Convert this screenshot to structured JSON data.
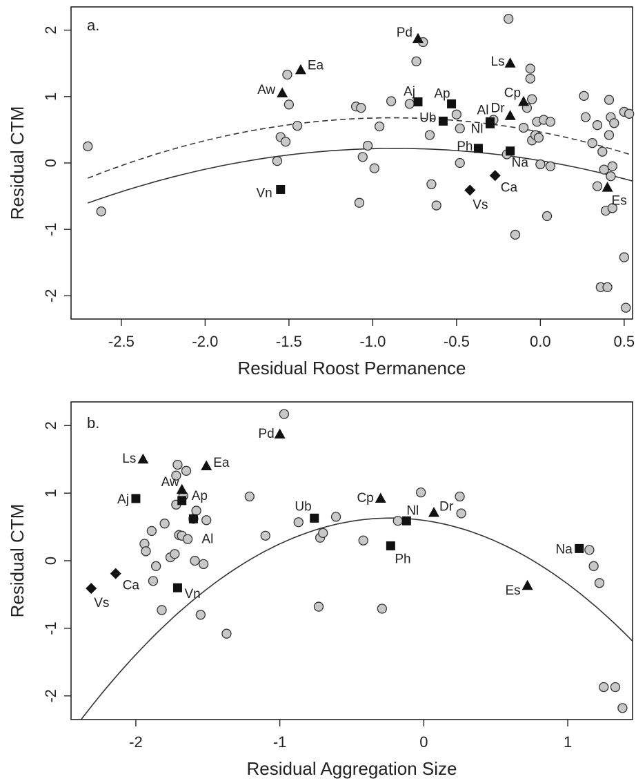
{
  "chart_data": [
    {
      "type": "scatter",
      "panel_label": "a.",
      "xlabel": "Residual Roost Permanence",
      "ylabel": "Residual CTM",
      "xlim": [
        -2.8,
        0.55
      ],
      "ylim": [
        -2.35,
        2.35
      ],
      "xticks": [
        -2.5,
        -2.0,
        -1.5,
        -1.0,
        -0.5,
        0.0,
        0.5
      ],
      "xtick_labels": [
        "-2.5",
        "-2.0",
        "-1.5",
        "-1.0",
        "-0.5",
        "0.0",
        "0.5"
      ],
      "yticks": [
        -2,
        -1,
        0,
        1,
        2
      ],
      "ytick_labels": [
        "-2",
        "-1",
        "0",
        "1",
        "2"
      ],
      "circles": [
        [
          -2.7,
          0.25
        ],
        [
          -2.62,
          -0.73
        ],
        [
          -1.57,
          0.03
        ],
        [
          -1.55,
          0.39
        ],
        [
          -1.52,
          0.32
        ],
        [
          -1.51,
          1.33
        ],
        [
          -1.5,
          0.88
        ],
        [
          -1.45,
          0.56
        ],
        [
          -1.1,
          0.85
        ],
        [
          -1.07,
          0.83
        ],
        [
          -1.08,
          -0.6
        ],
        [
          -1.06,
          0.09
        ],
        [
          -1.03,
          0.26
        ],
        [
          -0.99,
          -0.08
        ],
        [
          -0.96,
          0.55
        ],
        [
          -0.89,
          0.93
        ],
        [
          -0.78,
          0.89
        ],
        [
          -0.74,
          1.53
        ],
        [
          -0.7,
          1.82
        ],
        [
          -0.66,
          0.42
        ],
        [
          -0.65,
          -0.32
        ],
        [
          -0.62,
          -0.64
        ],
        [
          -0.5,
          0.73
        ],
        [
          -0.48,
          0.0
        ],
        [
          -0.48,
          0.52
        ],
        [
          -0.28,
          0.65
        ],
        [
          -0.2,
          0.13
        ],
        [
          -0.19,
          2.17
        ],
        [
          -0.15,
          -1.08
        ],
        [
          -0.1,
          0.53
        ],
        [
          -0.08,
          0.83
        ],
        [
          -0.06,
          1.27
        ],
        [
          -0.06,
          1.42
        ],
        [
          -0.05,
          0.96
        ],
        [
          -0.05,
          0.34
        ],
        [
          -0.03,
          0.42
        ],
        [
          -0.02,
          0.62
        ],
        [
          -0.01,
          0.38
        ],
        [
          0.0,
          -0.02
        ],
        [
          0.02,
          0.65
        ],
        [
          0.04,
          -0.8
        ],
        [
          0.06,
          -0.05
        ],
        [
          0.06,
          0.62
        ],
        [
          0.26,
          1.01
        ],
        [
          0.27,
          0.69
        ],
        [
          0.31,
          0.3
        ],
        [
          0.34,
          0.57
        ],
        [
          0.34,
          -0.35
        ],
        [
          0.36,
          -1.87
        ],
        [
          0.37,
          0.17
        ],
        [
          0.38,
          -0.1
        ],
        [
          0.39,
          -0.72
        ],
        [
          0.4,
          -1.87
        ],
        [
          0.41,
          0.42
        ],
        [
          0.41,
          0.95
        ],
        [
          0.42,
          0.69
        ],
        [
          0.42,
          -0.2
        ],
        [
          0.43,
          -0.05
        ],
        [
          0.43,
          -0.68
        ],
        [
          0.44,
          0.6
        ],
        [
          0.5,
          0.77
        ],
        [
          0.5,
          -1.42
        ],
        [
          0.51,
          -2.18
        ],
        [
          0.53,
          0.74
        ]
      ],
      "labeled_points": [
        {
          "label": "Ea",
          "shape": "triangle",
          "x": -1.43,
          "y": 1.4
        },
        {
          "label": "Aw",
          "shape": "triangle",
          "x": -1.54,
          "y": 1.05
        },
        {
          "label": "Vn",
          "shape": "square",
          "x": -1.55,
          "y": -0.4
        },
        {
          "label": "Pd",
          "shape": "triangle",
          "x": -0.73,
          "y": 1.87
        },
        {
          "label": "Aj",
          "shape": "square",
          "x": -0.73,
          "y": 0.92
        },
        {
          "label": "Ap",
          "shape": "square",
          "x": -0.53,
          "y": 0.89
        },
        {
          "label": "Ub",
          "shape": "square",
          "x": -0.58,
          "y": 0.63
        },
        {
          "label": "Ph",
          "shape": "square",
          "x": -0.37,
          "y": 0.22
        },
        {
          "label": "Nl",
          "shape": "square",
          "x": -0.3,
          "y": 0.59
        },
        {
          "label": "Al",
          "shape": "square",
          "x": -0.3,
          "y": 0.62
        },
        {
          "label": "Ls",
          "shape": "triangle",
          "x": -0.18,
          "y": 1.5
        },
        {
          "label": "Dr",
          "shape": "triangle",
          "x": -0.18,
          "y": 0.71
        },
        {
          "label": "Cp",
          "shape": "triangle",
          "x": -0.1,
          "y": 0.92
        },
        {
          "label": "Na",
          "shape": "square",
          "x": -0.18,
          "y": 0.18
        },
        {
          "label": "Ca",
          "shape": "diamond",
          "x": -0.27,
          "y": -0.19
        },
        {
          "label": "Vs",
          "shape": "diamond",
          "x": -0.42,
          "y": -0.41
        },
        {
          "label": "Es",
          "shape": "triangle",
          "x": 0.4,
          "y": -0.37
        }
      ],
      "curves": [
        {
          "style": "solid",
          "x_range": [
            -2.7,
            0.55
          ],
          "coef": [
            0.035,
            -0.425,
            -0.245
          ]
        },
        {
          "style": "dashed",
          "x_range": [
            -2.7,
            0.55
          ],
          "coef": [
            0.466,
            -0.485,
            -0.275
          ]
        }
      ]
    },
    {
      "type": "scatter",
      "panel_label": "b.",
      "xlabel": "Residual Aggregation Size",
      "ylabel": "Residual CTM",
      "xlim": [
        -2.45,
        1.45
      ],
      "ylim": [
        -2.35,
        2.35
      ],
      "xticks": [
        -2,
        -1,
        0,
        1
      ],
      "xtick_labels": [
        "-2",
        "-1",
        "0",
        "1"
      ],
      "yticks": [
        -2,
        -1,
        0,
        1,
        2
      ],
      "ytick_labels": [
        "-2",
        "-1",
        "0",
        "1",
        "2"
      ],
      "circles": [
        [
          -1.94,
          0.25
        ],
        [
          -1.93,
          0.14
        ],
        [
          -1.89,
          0.44
        ],
        [
          -1.88,
          -0.3
        ],
        [
          -1.86,
          -0.08
        ],
        [
          -1.82,
          -0.73
        ],
        [
          -1.8,
          0.55
        ],
        [
          -1.76,
          0.05
        ],
        [
          -1.73,
          0.1
        ],
        [
          -1.72,
          0.83
        ],
        [
          -1.72,
          1.26
        ],
        [
          -1.71,
          1.42
        ],
        [
          -1.7,
          0.38
        ],
        [
          -1.68,
          0.37
        ],
        [
          -1.67,
          0.96
        ],
        [
          -1.65,
          1.33
        ],
        [
          -1.64,
          0.32
        ],
        [
          -1.6,
          0.62
        ],
        [
          -1.59,
          0.0
        ],
        [
          -1.58,
          0.74
        ],
        [
          -1.55,
          -0.8
        ],
        [
          -1.53,
          -0.05
        ],
        [
          -1.51,
          0.6
        ],
        [
          -1.37,
          -1.08
        ],
        [
          -1.21,
          0.95
        ],
        [
          -1.1,
          0.37
        ],
        [
          -0.97,
          2.17
        ],
        [
          -0.87,
          0.57
        ],
        [
          -0.72,
          0.34
        ],
        [
          -0.7,
          0.41
        ],
        [
          -0.73,
          -0.68
        ],
        [
          -0.61,
          0.65
        ],
        [
          -0.42,
          0.3
        ],
        [
          -0.29,
          -0.71
        ],
        [
          -0.18,
          0.59
        ],
        [
          -0.02,
          1.01
        ],
        [
          0.25,
          0.95
        ],
        [
          0.26,
          0.7
        ],
        [
          1.15,
          0.16
        ],
        [
          1.18,
          -0.08
        ],
        [
          1.22,
          -0.33
        ],
        [
          1.25,
          -1.87
        ],
        [
          1.33,
          -1.87
        ],
        [
          1.38,
          -2.18
        ]
      ],
      "labeled_points": [
        {
          "label": "Ls",
          "shape": "triangle",
          "x": -1.95,
          "y": 1.5
        },
        {
          "label": "Aj",
          "shape": "square",
          "x": -2.0,
          "y": 0.92
        },
        {
          "label": "Aw",
          "shape": "triangle",
          "x": -1.68,
          "y": 1.05
        },
        {
          "label": "Ap",
          "shape": "square",
          "x": -1.68,
          "y": 0.89
        },
        {
          "label": "Ea",
          "shape": "triangle",
          "x": -1.51,
          "y": 1.4
        },
        {
          "label": "Al",
          "shape": "square",
          "x": -1.6,
          "y": 0.62
        },
        {
          "label": "Vn",
          "shape": "square",
          "x": -1.71,
          "y": -0.4
        },
        {
          "label": "Ca",
          "shape": "diamond",
          "x": -2.14,
          "y": -0.19
        },
        {
          "label": "Vs",
          "shape": "diamond",
          "x": -2.31,
          "y": -0.41
        },
        {
          "label": "Pd",
          "shape": "triangle",
          "x": -1.0,
          "y": 1.87
        },
        {
          "label": "Ub",
          "shape": "square",
          "x": -0.76,
          "y": 0.63
        },
        {
          "label": "Cp",
          "shape": "triangle",
          "x": -0.3,
          "y": 0.92
        },
        {
          "label": "Nl",
          "shape": "square",
          "x": -0.12,
          "y": 0.59
        },
        {
          "label": "Dr",
          "shape": "triangle",
          "x": 0.07,
          "y": 0.71
        },
        {
          "label": "Ph",
          "shape": "square",
          "x": -0.23,
          "y": 0.22
        },
        {
          "label": "Es",
          "shape": "triangle",
          "x": 0.72,
          "y": -0.37
        },
        {
          "label": "Na",
          "shape": "square",
          "x": 1.08,
          "y": 0.18
        }
      ],
      "curves": [
        {
          "style": "solid",
          "x_range": [
            -2.42,
            1.45
          ],
          "coef": [
            0.597,
            -0.297,
            -0.645
          ]
        }
      ]
    }
  ]
}
